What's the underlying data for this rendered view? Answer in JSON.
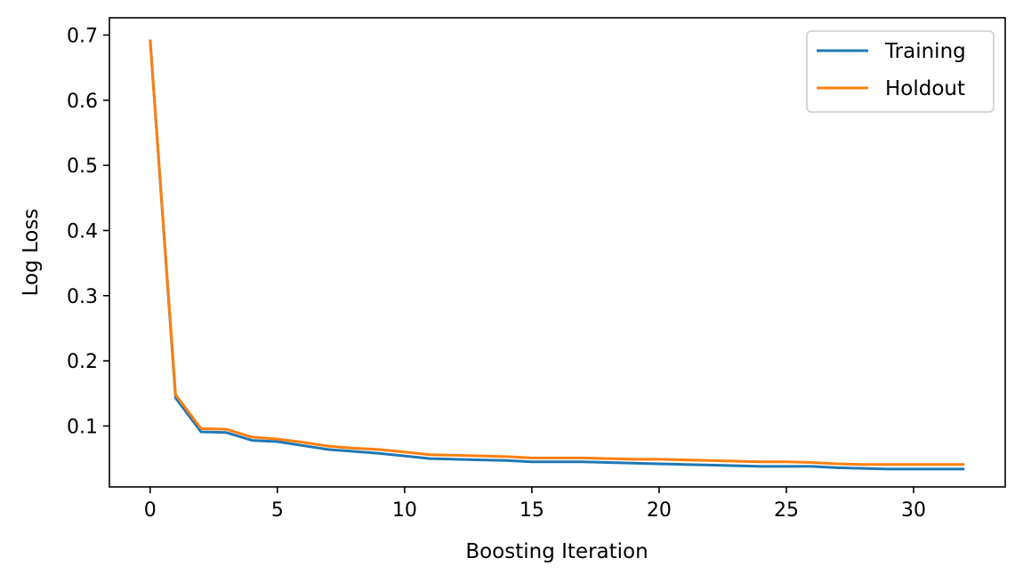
{
  "chart_data": {
    "type": "line",
    "xlabel": "Boosting Iteration",
    "ylabel": "Log Loss",
    "xlim": [
      -1.6,
      33.6
    ],
    "ylim": [
      0.0065,
      0.7265
    ],
    "xticks": [
      0,
      5,
      10,
      15,
      20,
      25,
      30
    ],
    "yticks": [
      0.1,
      0.2,
      0.3,
      0.4,
      0.5,
      0.6,
      0.7
    ],
    "grid": false,
    "legend_position": "top-right",
    "x": [
      0,
      1,
      2,
      3,
      4,
      5,
      6,
      7,
      8,
      9,
      10,
      11,
      12,
      13,
      14,
      15,
      16,
      17,
      18,
      19,
      20,
      21,
      22,
      23,
      24,
      25,
      26,
      27,
      28,
      29,
      30,
      31,
      32
    ],
    "series": [
      {
        "name": "Training",
        "color": "#1f77b4",
        "values": [
          0.693,
          0.143,
          0.091,
          0.09,
          0.078,
          0.076,
          0.07,
          0.064,
          0.061,
          0.058,
          0.054,
          0.05,
          0.049,
          0.048,
          0.047,
          0.045,
          0.045,
          0.045,
          0.044,
          0.043,
          0.042,
          0.041,
          0.04,
          0.039,
          0.038,
          0.038,
          0.038,
          0.036,
          0.035,
          0.034,
          0.034,
          0.034,
          0.034
        ]
      },
      {
        "name": "Holdout",
        "color": "#ff7f0e",
        "values": [
          0.693,
          0.148,
          0.096,
          0.095,
          0.083,
          0.08,
          0.075,
          0.069,
          0.066,
          0.064,
          0.06,
          0.056,
          0.055,
          0.054,
          0.053,
          0.051,
          0.051,
          0.051,
          0.05,
          0.049,
          0.049,
          0.048,
          0.047,
          0.046,
          0.045,
          0.045,
          0.044,
          0.042,
          0.041,
          0.041,
          0.041,
          0.041,
          0.041
        ]
      }
    ]
  }
}
